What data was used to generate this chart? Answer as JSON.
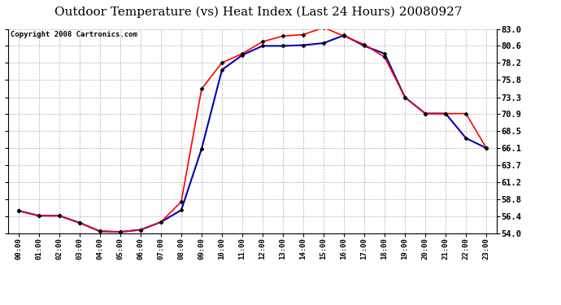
{
  "title": "Outdoor Temperature (vs) Heat Index (Last 24 Hours) 20080927",
  "copyright": "Copyright 2008 Cartronics.com",
  "x_labels": [
    "00:00",
    "01:00",
    "02:00",
    "03:00",
    "04:00",
    "05:00",
    "06:00",
    "07:00",
    "08:00",
    "09:00",
    "10:00",
    "11:00",
    "12:00",
    "13:00",
    "14:00",
    "15:00",
    "16:00",
    "17:00",
    "18:00",
    "19:00",
    "20:00",
    "21:00",
    "22:00",
    "23:00"
  ],
  "temp_red": [
    57.2,
    56.5,
    56.5,
    55.5,
    54.3,
    54.2,
    54.5,
    55.6,
    58.5,
    74.5,
    78.2,
    79.5,
    81.2,
    82.0,
    82.2,
    83.2,
    82.0,
    80.8,
    79.0,
    73.3,
    71.0,
    71.0,
    71.0,
    66.1
  ],
  "heat_blue": [
    57.2,
    56.5,
    56.5,
    55.5,
    54.3,
    54.2,
    54.5,
    55.6,
    57.3,
    66.0,
    77.2,
    79.3,
    80.6,
    80.6,
    80.7,
    81.0,
    82.1,
    80.6,
    79.5,
    73.3,
    71.0,
    71.0,
    67.5,
    66.1
  ],
  "ylim_min": 54.0,
  "ylim_max": 83.0,
  "yticks": [
    54.0,
    56.4,
    58.8,
    61.2,
    63.7,
    66.1,
    68.5,
    70.9,
    73.3,
    75.8,
    78.2,
    80.6,
    83.0
  ],
  "red_color": "#ff0000",
  "blue_color": "#0000bb",
  "bg_color": "#ffffff",
  "grid_color": "#aaaaaa",
  "title_fontsize": 11,
  "copyright_fontsize": 6.5
}
